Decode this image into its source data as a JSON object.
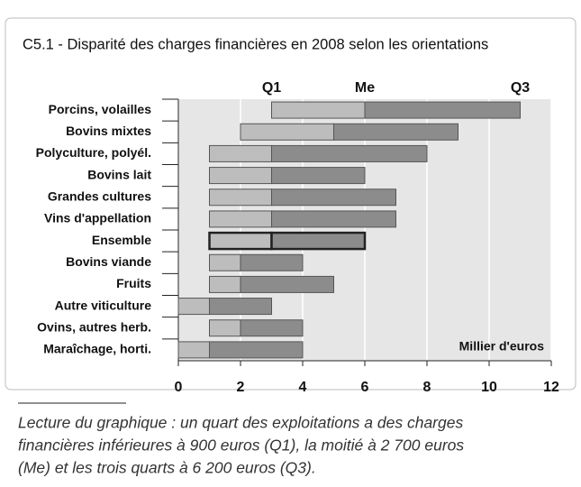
{
  "chart_data": {
    "type": "bar",
    "title": "C5.1 - Disparité des charges financières en 2008 selon les orientations",
    "orientation": "horizontal",
    "categories": [
      "Porcins, volailles",
      "Bovins mixtes",
      "Polyculture, polyél.",
      "Bovins lait",
      "Grandes cultures",
      "Vins d'appellation",
      "Ensemble",
      "Bovins viande",
      "Fruits",
      "Autre viticulture",
      "Ovins, autres herb.",
      "Maraîchage, horti."
    ],
    "series": [
      {
        "name": "Q1",
        "color": "#bdbdbd",
        "values": [
          3,
          2,
          1,
          1,
          1,
          1,
          1,
          1,
          1,
          0,
          1,
          0
        ]
      },
      {
        "name": "Me",
        "color": "#8c8c8c",
        "values": [
          6,
          5,
          3,
          3,
          3,
          3,
          3,
          2,
          2,
          1,
          2,
          1
        ]
      },
      {
        "name": "Q3",
        "values": [
          11,
          9,
          8,
          6,
          7,
          7,
          6,
          4,
          5,
          3,
          4,
          4
        ]
      }
    ],
    "highlight": 6,
    "xlim": [
      0,
      12
    ],
    "xticks": [
      0,
      2,
      4,
      6,
      8,
      10,
      12
    ],
    "grid": true,
    "x_label": "Millier d'euros",
    "note": [
      "Lecture du graphique : un quart des exploitations a des charges",
      "financières inférieures à 900 euros (Q1), la moitié à 2 700 euros",
      "(Me) et les trois quarts à 6 200 euros (Q3)."
    ]
  }
}
